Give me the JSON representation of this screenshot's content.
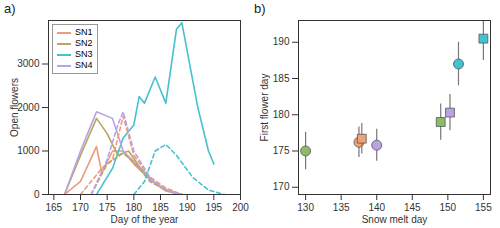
{
  "chart_data": [
    {
      "type": "line",
      "title": "a)",
      "x_label": "Day of the year",
      "y_label": "Open flowers",
      "xlim": [
        164,
        200
      ],
      "xticks": [
        165,
        170,
        175,
        180,
        185,
        190,
        195,
        200
      ],
      "ylim": [
        0,
        4000
      ],
      "yticks": [
        0,
        1000,
        2000,
        3000
      ],
      "legend": "top left",
      "grid": false,
      "series": [
        {
          "name": "SN1",
          "color": "#EE9A7E",
          "line_style": "solid",
          "x": [
            167,
            170,
            173,
            174,
            176,
            178,
            180,
            183,
            186,
            189
          ],
          "values": [
            0,
            300,
            1100,
            500,
            1000,
            1000,
            700,
            350,
            80,
            0
          ]
        },
        {
          "name": "SN2",
          "color": "#B4A862",
          "line_style": "solid",
          "x": [
            167,
            170,
            173,
            175,
            177,
            179,
            181,
            184,
            187,
            189
          ],
          "values": [
            0,
            900,
            1750,
            1400,
            900,
            1000,
            650,
            250,
            50,
            0
          ]
        },
        {
          "name": "SN3",
          "color": "#45C2D0",
          "line_style": "solid",
          "x": [
            173,
            176,
            178,
            180,
            181,
            182,
            184,
            186,
            188,
            189,
            192,
            194,
            195
          ],
          "values": [
            0,
            600,
            1300,
            1600,
            2250,
            2100,
            2700,
            2100,
            3800,
            3950,
            2000,
            1000,
            700
          ]
        },
        {
          "name": "SN4",
          "color": "#BBA2E2",
          "line_style": "solid",
          "x": [
            167,
            170,
            173,
            176,
            178,
            180,
            183,
            186,
            189
          ],
          "values": [
            0,
            1000,
            1900,
            1750,
            1000,
            750,
            350,
            100,
            0
          ]
        },
        {
          "name": "SN1",
          "color": "#EE9A7E",
          "line_style": "dashed",
          "x": [
            170,
            174,
            176,
            178,
            180,
            183,
            186,
            189
          ],
          "values": [
            0,
            600,
            800,
            1800,
            900,
            400,
            150,
            0
          ]
        },
        {
          "name": "SN2",
          "color": "#B4A862",
          "line_style": "dashed",
          "x": [
            172,
            175,
            178,
            180,
            183,
            186,
            189
          ],
          "values": [
            0,
            700,
            950,
            750,
            300,
            100,
            0
          ]
        },
        {
          "name": "SN3",
          "color": "#45C2D0",
          "line_style": "dashed",
          "x": [
            180,
            182,
            184,
            186,
            188,
            191,
            194,
            197
          ],
          "values": [
            0,
            300,
            1000,
            1150,
            900,
            400,
            100,
            0
          ]
        },
        {
          "name": "SN4",
          "color": "#BBA2E2",
          "line_style": "dashed",
          "x": [
            172,
            175,
            177,
            178,
            180,
            183,
            186,
            189
          ],
          "values": [
            0,
            800,
            1600,
            1900,
            1000,
            400,
            100,
            0
          ]
        }
      ]
    },
    {
      "type": "scatter",
      "title": "b)",
      "x_label": "Snow melt day",
      "y_label": "First flower day",
      "xlim": [
        129,
        156
      ],
      "xticks": [
        130,
        135,
        140,
        145,
        150,
        155
      ],
      "ylim": [
        169,
        193
      ],
      "yticks": [
        170,
        175,
        180,
        185,
        190
      ],
      "grid": false,
      "series": [
        {
          "name": "SN2",
          "color": "#8DBB6A",
          "marker": "circle",
          "x": [
            130
          ],
          "values": [
            175
          ],
          "error": [
            2.6
          ]
        },
        {
          "name": "SN1",
          "color": "#F0A274",
          "marker": "circle",
          "x": [
            137.5
          ],
          "values": [
            176.2
          ],
          "error": [
            2.1
          ]
        },
        {
          "name": "SN1",
          "color": "#F0A274",
          "marker": "square",
          "x": [
            137.9
          ],
          "values": [
            176.7
          ],
          "error": [
            2.1
          ]
        },
        {
          "name": "SN4",
          "color": "#BBA2E2",
          "marker": "circle",
          "x": [
            140
          ],
          "values": [
            175.8
          ],
          "error": [
            2.2
          ]
        },
        {
          "name": "SN2",
          "color": "#8DBB6A",
          "marker": "square",
          "x": [
            149
          ],
          "values": [
            179
          ],
          "error": [
            2.5
          ]
        },
        {
          "name": "SN4",
          "color": "#BBA2E2",
          "marker": "square",
          "x": [
            150.3
          ],
          "values": [
            180.3
          ],
          "error": [
            2.5
          ]
        },
        {
          "name": "SN3",
          "color": "#45C2D0",
          "marker": "circle",
          "x": [
            151.5
          ],
          "values": [
            187
          ],
          "error": [
            3
          ]
        },
        {
          "name": "SN3",
          "color": "#45C2D0",
          "marker": "square",
          "x": [
            155
          ],
          "values": [
            190.5
          ],
          "error": [
            3
          ]
        }
      ]
    }
  ]
}
